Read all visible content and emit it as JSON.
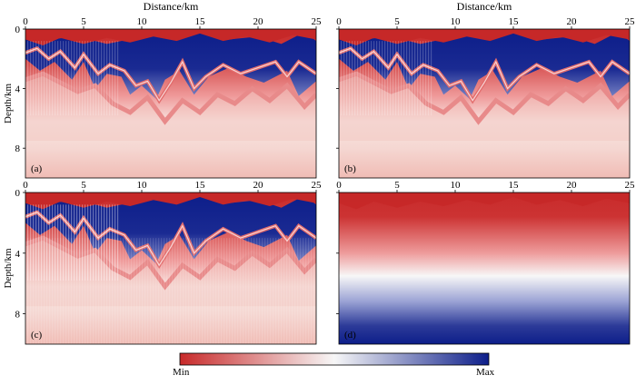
{
  "x_axis": {
    "label": "Distance/km",
    "ticks": [
      "0",
      "5",
      "10",
      "15",
      "20",
      "25"
    ],
    "min": 0,
    "max": 25
  },
  "y_axis": {
    "label": "Depth/km",
    "ticks": [
      "0",
      "4",
      "8"
    ],
    "min": 0,
    "max": 10
  },
  "panels": [
    {
      "id": "a",
      "label": "(a)"
    },
    {
      "id": "b",
      "label": "(b)"
    },
    {
      "id": "c",
      "label": "(c)"
    },
    {
      "id": "d",
      "label": "(d)"
    }
  ],
  "colorbar": {
    "min_label": "Min",
    "max_label": "Max",
    "colors": [
      "#c82a2a",
      "#f7f7f7",
      "#0d1e8a"
    ]
  }
}
